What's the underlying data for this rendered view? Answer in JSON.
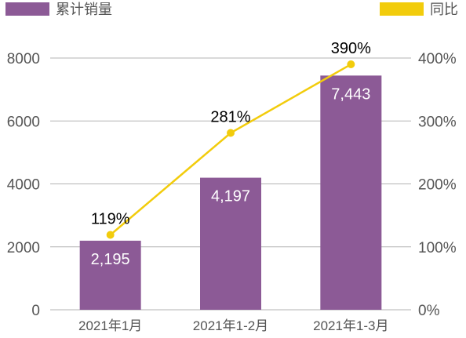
{
  "colors": {
    "bar": "#8c5a96",
    "line": "#f2cc0c",
    "grid": "#b3b3b3",
    "axis_text": "#555555",
    "bar_label": "#ffffff",
    "line_label": "#000000",
    "background": "#ffffff"
  },
  "chart_data": {
    "type": "bar",
    "categories": [
      "2021年1月",
      "2021年1-2月",
      "2021年1-3月"
    ],
    "series": [
      {
        "name": "累计销量",
        "type": "bar",
        "axis": "left",
        "values": [
          2195,
          4197,
          7443
        ],
        "labels": [
          "2,195",
          "4,197",
          "7,443"
        ]
      },
      {
        "name": "同比",
        "type": "line",
        "axis": "right",
        "values": [
          119,
          281,
          390
        ],
        "labels": [
          "119%",
          "281%",
          "390%"
        ]
      }
    ],
    "y_left": {
      "range": [
        0,
        8000
      ],
      "ticks": [
        "0",
        "2000",
        "4000",
        "6000",
        "8000"
      ]
    },
    "y_right": {
      "range": [
        0,
        400
      ],
      "ticks": [
        "0%",
        "100%",
        "200%",
        "300%",
        "400%"
      ]
    },
    "grid": true,
    "legend": "top"
  }
}
